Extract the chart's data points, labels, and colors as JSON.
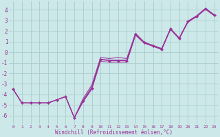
{
  "xlabel": "Windchill (Refroidissement éolien,°C)",
  "background_color": "#cce8e8",
  "grid_color": "#aacccc",
  "line_color": "#993399",
  "x_hours": [
    0,
    1,
    2,
    3,
    4,
    5,
    6,
    7,
    8,
    9,
    10,
    11,
    12,
    13,
    14,
    15,
    16,
    17,
    18,
    19,
    20,
    21,
    22,
    23
  ],
  "main_y": [
    -3.5,
    -4.8,
    -4.8,
    -4.8,
    -4.8,
    -4.5,
    -4.2,
    -6.2,
    -4.6,
    -3.4,
    -0.7,
    -0.8,
    -0.8,
    -0.8,
    1.7,
    0.9,
    0.6,
    0.3,
    2.2,
    1.3,
    2.9,
    3.4,
    4.1,
    3.5
  ],
  "line2_y": [
    -3.5,
    -4.8,
    -4.8,
    -4.8,
    -4.8,
    -4.5,
    -4.2,
    -6.2,
    -4.4,
    -3.1,
    -0.5,
    -0.6,
    -0.5,
    -0.6,
    1.8,
    0.95,
    0.65,
    0.35,
    2.25,
    1.35,
    2.95,
    3.45,
    4.15,
    3.55
  ],
  "line3_y": [
    -3.5,
    -4.8,
    -4.8,
    -4.8,
    -4.8,
    -4.5,
    -4.2,
    -6.2,
    -4.7,
    -3.5,
    -0.85,
    -0.95,
    -0.95,
    -0.95,
    1.6,
    0.85,
    0.55,
    0.25,
    2.15,
    1.25,
    2.85,
    3.35,
    4.05,
    3.45
  ],
  "line4_y": [
    -3.5,
    -4.8,
    -4.8,
    -4.8,
    -4.8,
    -4.5,
    -4.2,
    -6.2,
    -4.55,
    -3.3,
    -0.65,
    -0.75,
    -0.75,
    -0.75,
    1.65,
    0.9,
    0.6,
    0.3,
    2.2,
    1.3,
    2.9,
    3.4,
    4.1,
    3.5
  ],
  "ylim": [
    -6.8,
    4.8
  ],
  "yticks": [
    -6,
    -5,
    -4,
    -3,
    -2,
    -1,
    0,
    1,
    2,
    3,
    4
  ],
  "xlim": [
    -0.5,
    23.5
  ],
  "xtick_labels": [
    "0",
    "1",
    "2",
    "3",
    "4",
    "5",
    "6",
    "7",
    "8",
    "9",
    "10",
    "11",
    "12",
    "13",
    "14",
    "15",
    "16",
    "17",
    "18",
    "19",
    "20",
    "21",
    "22",
    "23"
  ]
}
